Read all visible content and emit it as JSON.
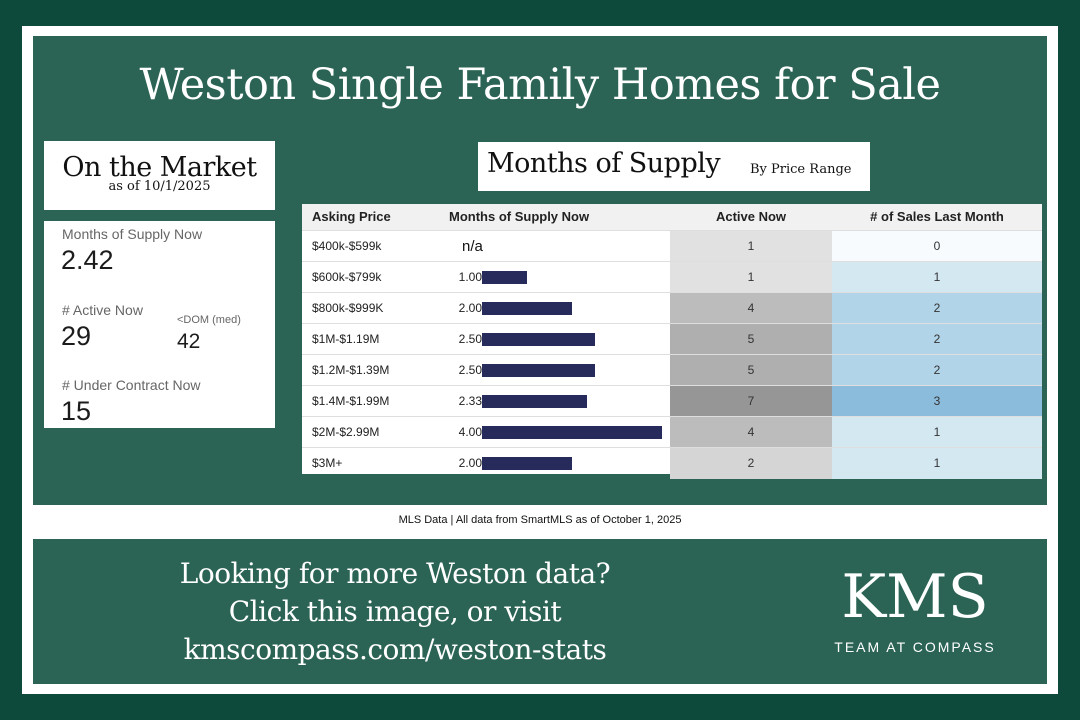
{
  "title": "Weston Single Family Homes for Sale",
  "on_market": {
    "title": "On the Market",
    "date": "as of 10/1/2025",
    "months_supply_label": "Months of Supply Now",
    "months_supply_value": "2.42",
    "active_label": "# Active Now",
    "active_value": "29",
    "dom_label": "<DOM (med)",
    "dom_value": "42",
    "under_contract_label": "# Under Contract Now",
    "under_contract_value": "15"
  },
  "supply_section": {
    "title": "Months of Supply",
    "subtitle": "By Price Range"
  },
  "chart_data": {
    "type": "table",
    "columns": [
      "Asking Price",
      "Months of Supply Now",
      "Active Now",
      "# of Sales Last Month"
    ],
    "rows": [
      {
        "price": "$400k-$599k",
        "supply": null,
        "supply_label": "n/a",
        "active": 1,
        "sales": 0
      },
      {
        "price": "$600k-$799k",
        "supply": 1.0,
        "supply_label": "1.00",
        "active": 1,
        "sales": 1
      },
      {
        "price": "$800k-$999K",
        "supply": 2.0,
        "supply_label": "2.00",
        "active": 4,
        "sales": 2
      },
      {
        "price": "$1M-$1.19M",
        "supply": 2.5,
        "supply_label": "2.50",
        "active": 5,
        "sales": 2
      },
      {
        "price": "$1.2M-$1.39M",
        "supply": 2.5,
        "supply_label": "2.50",
        "active": 5,
        "sales": 2
      },
      {
        "price": "$1.4M-$1.99M",
        "supply": 2.33,
        "supply_label": "2.33",
        "active": 7,
        "sales": 3
      },
      {
        "price": "$2M-$2.99M",
        "supply": 4.0,
        "supply_label": "4.00",
        "active": 4,
        "sales": 1
      },
      {
        "price": "$3M+",
        "supply": 2.0,
        "supply_label": "2.00",
        "active": 2,
        "sales": 1
      }
    ],
    "bar_color": "#262b5c"
  },
  "footer_note": "MLS Data | All data from SmartMLS as of October 1, 2025",
  "cta": {
    "line1": "Looking for more Weston data?",
    "line2": "Click this image, or visit",
    "line3": "kmscompass.com/weston-stats"
  },
  "logo": {
    "mark": "KMS",
    "subtitle": "TEAM AT COMPASS"
  },
  "colors": {
    "background": "#0e4a3c",
    "panel": "#2b6354"
  }
}
